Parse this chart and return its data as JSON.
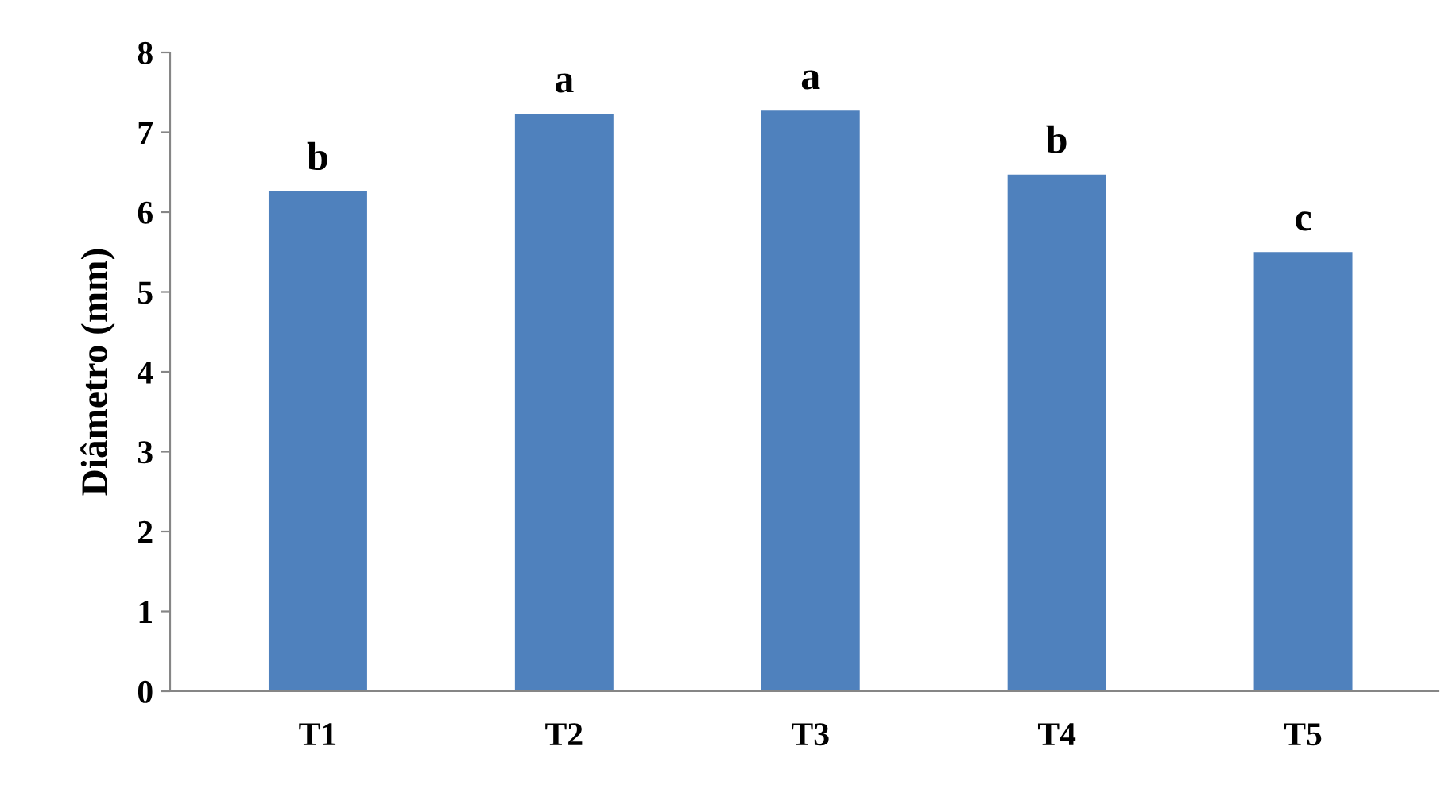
{
  "chart_data": {
    "type": "bar",
    "ylabel": "Diâmetro (mm)",
    "categories": [
      "T1",
      "T2",
      "T3",
      "T4",
      "T5"
    ],
    "values": [
      6.26,
      7.23,
      7.27,
      6.47,
      5.5
    ],
    "color": "#4f81bd",
    "ylim": [
      0,
      8
    ],
    "yticks": [
      0,
      1,
      2,
      3,
      4,
      5,
      6,
      7,
      8
    ],
    "grid": false,
    "annotations": [
      {
        "text": "b",
        "x": "T1",
        "y": 6.26
      },
      {
        "text": "a",
        "x": "T2",
        "y": 7.23
      },
      {
        "text": "a",
        "x": "T3",
        "y": 7.27
      },
      {
        "text": "b",
        "x": "T4",
        "y": 6.47
      },
      {
        "text": "c",
        "x": "T5",
        "y": 5.5
      }
    ]
  }
}
